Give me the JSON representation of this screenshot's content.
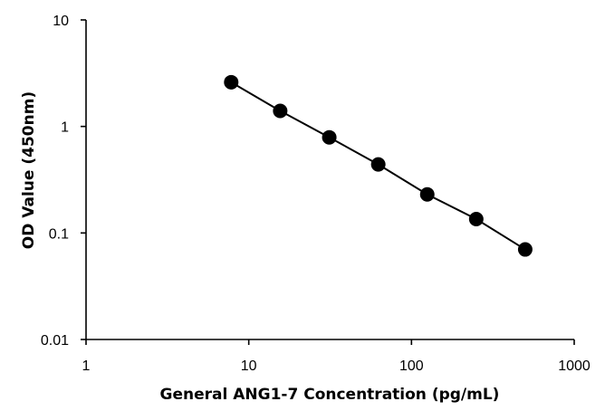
{
  "chart_data": {
    "type": "scatter",
    "title": "",
    "xlabel": "General ANG1-7 Concentration (pg/mL)",
    "ylabel": "OD Value (450nm)",
    "xscale": "log",
    "yscale": "log",
    "xlim": [
      1,
      1000
    ],
    "ylim": [
      0.01,
      10
    ],
    "xticks": [
      "1",
      "10",
      "100",
      "1000"
    ],
    "yticks": [
      "0.01",
      "0.1",
      "1",
      "10"
    ],
    "grid": false,
    "legend": "none",
    "series": [
      {
        "x": [
          7.8,
          15.6,
          31.25,
          62.5,
          125,
          250,
          500
        ],
        "y": [
          2.6,
          1.4,
          0.79,
          0.44,
          0.23,
          0.135,
          0.07
        ],
        "marker": "circle",
        "line": true,
        "color": "#000000"
      }
    ]
  }
}
